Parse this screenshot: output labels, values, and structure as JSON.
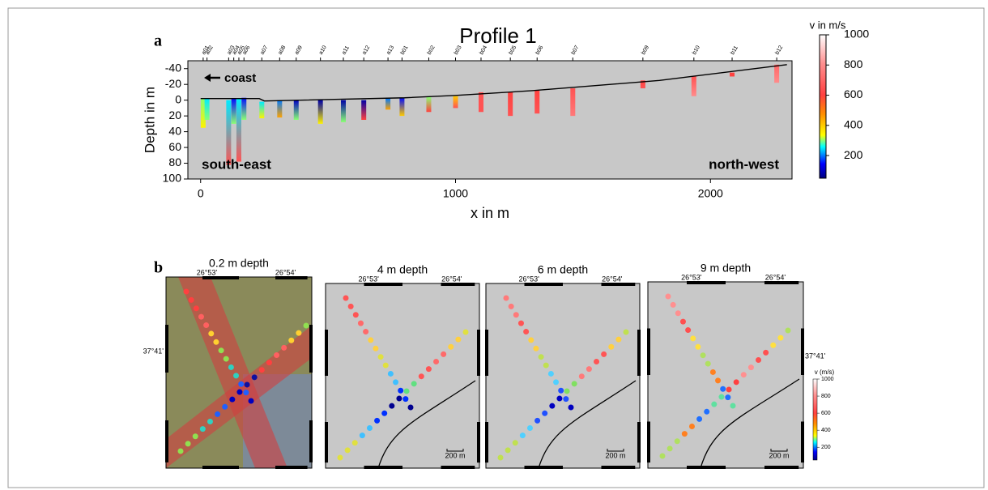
{
  "panel_a": {
    "label": "a",
    "title": "Profile 1",
    "xlabel": "x in m",
    "ylabel": "Depth in m",
    "xlim": [
      -50,
      2320
    ],
    "ylim": [
      100,
      -50
    ],
    "xticks": [
      0,
      1000,
      2000
    ],
    "yticks": [
      -40,
      -20,
      0,
      20,
      40,
      60,
      80,
      100
    ],
    "stations": [
      "a01",
      "a02",
      "a03",
      "a04",
      "a05",
      "a06",
      "a07",
      "a08",
      "a09",
      "a10",
      "a11",
      "a12",
      "a13",
      "b01",
      "b02",
      "b03",
      "b04",
      "b05",
      "b06",
      "b07",
      "b09",
      "b10",
      "b11",
      "b12"
    ],
    "station_x": [
      10,
      25,
      110,
      130,
      150,
      170,
      240,
      310,
      375,
      470,
      560,
      640,
      735,
      790,
      895,
      1000,
      1100,
      1215,
      1320,
      1460,
      1735,
      1935,
      2085,
      2260
    ],
    "column_top": [
      -2,
      -2,
      0,
      -2,
      -2,
      -3,
      2,
      0,
      0,
      0,
      0,
      0,
      -2,
      -3,
      -4,
      -5,
      -10,
      -10,
      -12,
      -15,
      -25,
      -30,
      -35,
      -45
    ],
    "column_bottom": [
      35,
      25,
      82,
      30,
      78,
      25,
      23,
      22,
      25,
      30,
      28,
      25,
      12,
      20,
      15,
      10,
      15,
      20,
      17,
      20,
      -15,
      -5,
      -30,
      -22
    ],
    "column_v_top": [
      300,
      250,
      250,
      150,
      250,
      150,
      250,
      200,
      100,
      80,
      80,
      80,
      200,
      150,
      300,
      400,
      650,
      600,
      600,
      650,
      600,
      650,
      600,
      700
    ],
    "column_v_bottom": [
      350,
      300,
      650,
      300,
      650,
      300,
      350,
      450,
      300,
      350,
      300,
      600,
      450,
      400,
      600,
      650,
      650,
      650,
      650,
      750,
      650,
      800,
      600,
      800
    ],
    "surface_x": [
      0,
      230,
      250,
      800,
      1000,
      1300,
      1800,
      2300
    ],
    "surface_depth": [
      -2,
      -2,
      1,
      -3,
      -6,
      -12,
      -25,
      -45
    ],
    "coast": "coast",
    "left_label": "south-east",
    "right_label": "north-west",
    "colorbar": {
      "label": "v in m/s",
      "lim": [
        50,
        1000
      ],
      "ticks": [
        200,
        400,
        600,
        800,
        1000
      ]
    }
  },
  "panel_b": {
    "label": "b",
    "maps": [
      {
        "title": "0.2 m depth",
        "lon_labels": [
          "26°53'",
          "26°54'"
        ],
        "lat_label": "37°41'"
      },
      {
        "title": "4 m depth",
        "lon_labels": [
          "26°53'",
          "26°54'"
        ],
        "scale": "200 m"
      },
      {
        "title": "6 m depth",
        "lon_labels": [
          "26°53'",
          "26°54'"
        ],
        "scale": "200 m"
      },
      {
        "title": "9 m depth",
        "lon_labels": [
          "26°53'",
          "26°54'"
        ],
        "lat_label": "37°41'",
        "scale": "200 m"
      }
    ],
    "colorbar": {
      "label": "v (m/s)",
      "lim": [
        50,
        1000
      ],
      "ticks": [
        200,
        400,
        600,
        800,
        1000
      ]
    }
  }
}
